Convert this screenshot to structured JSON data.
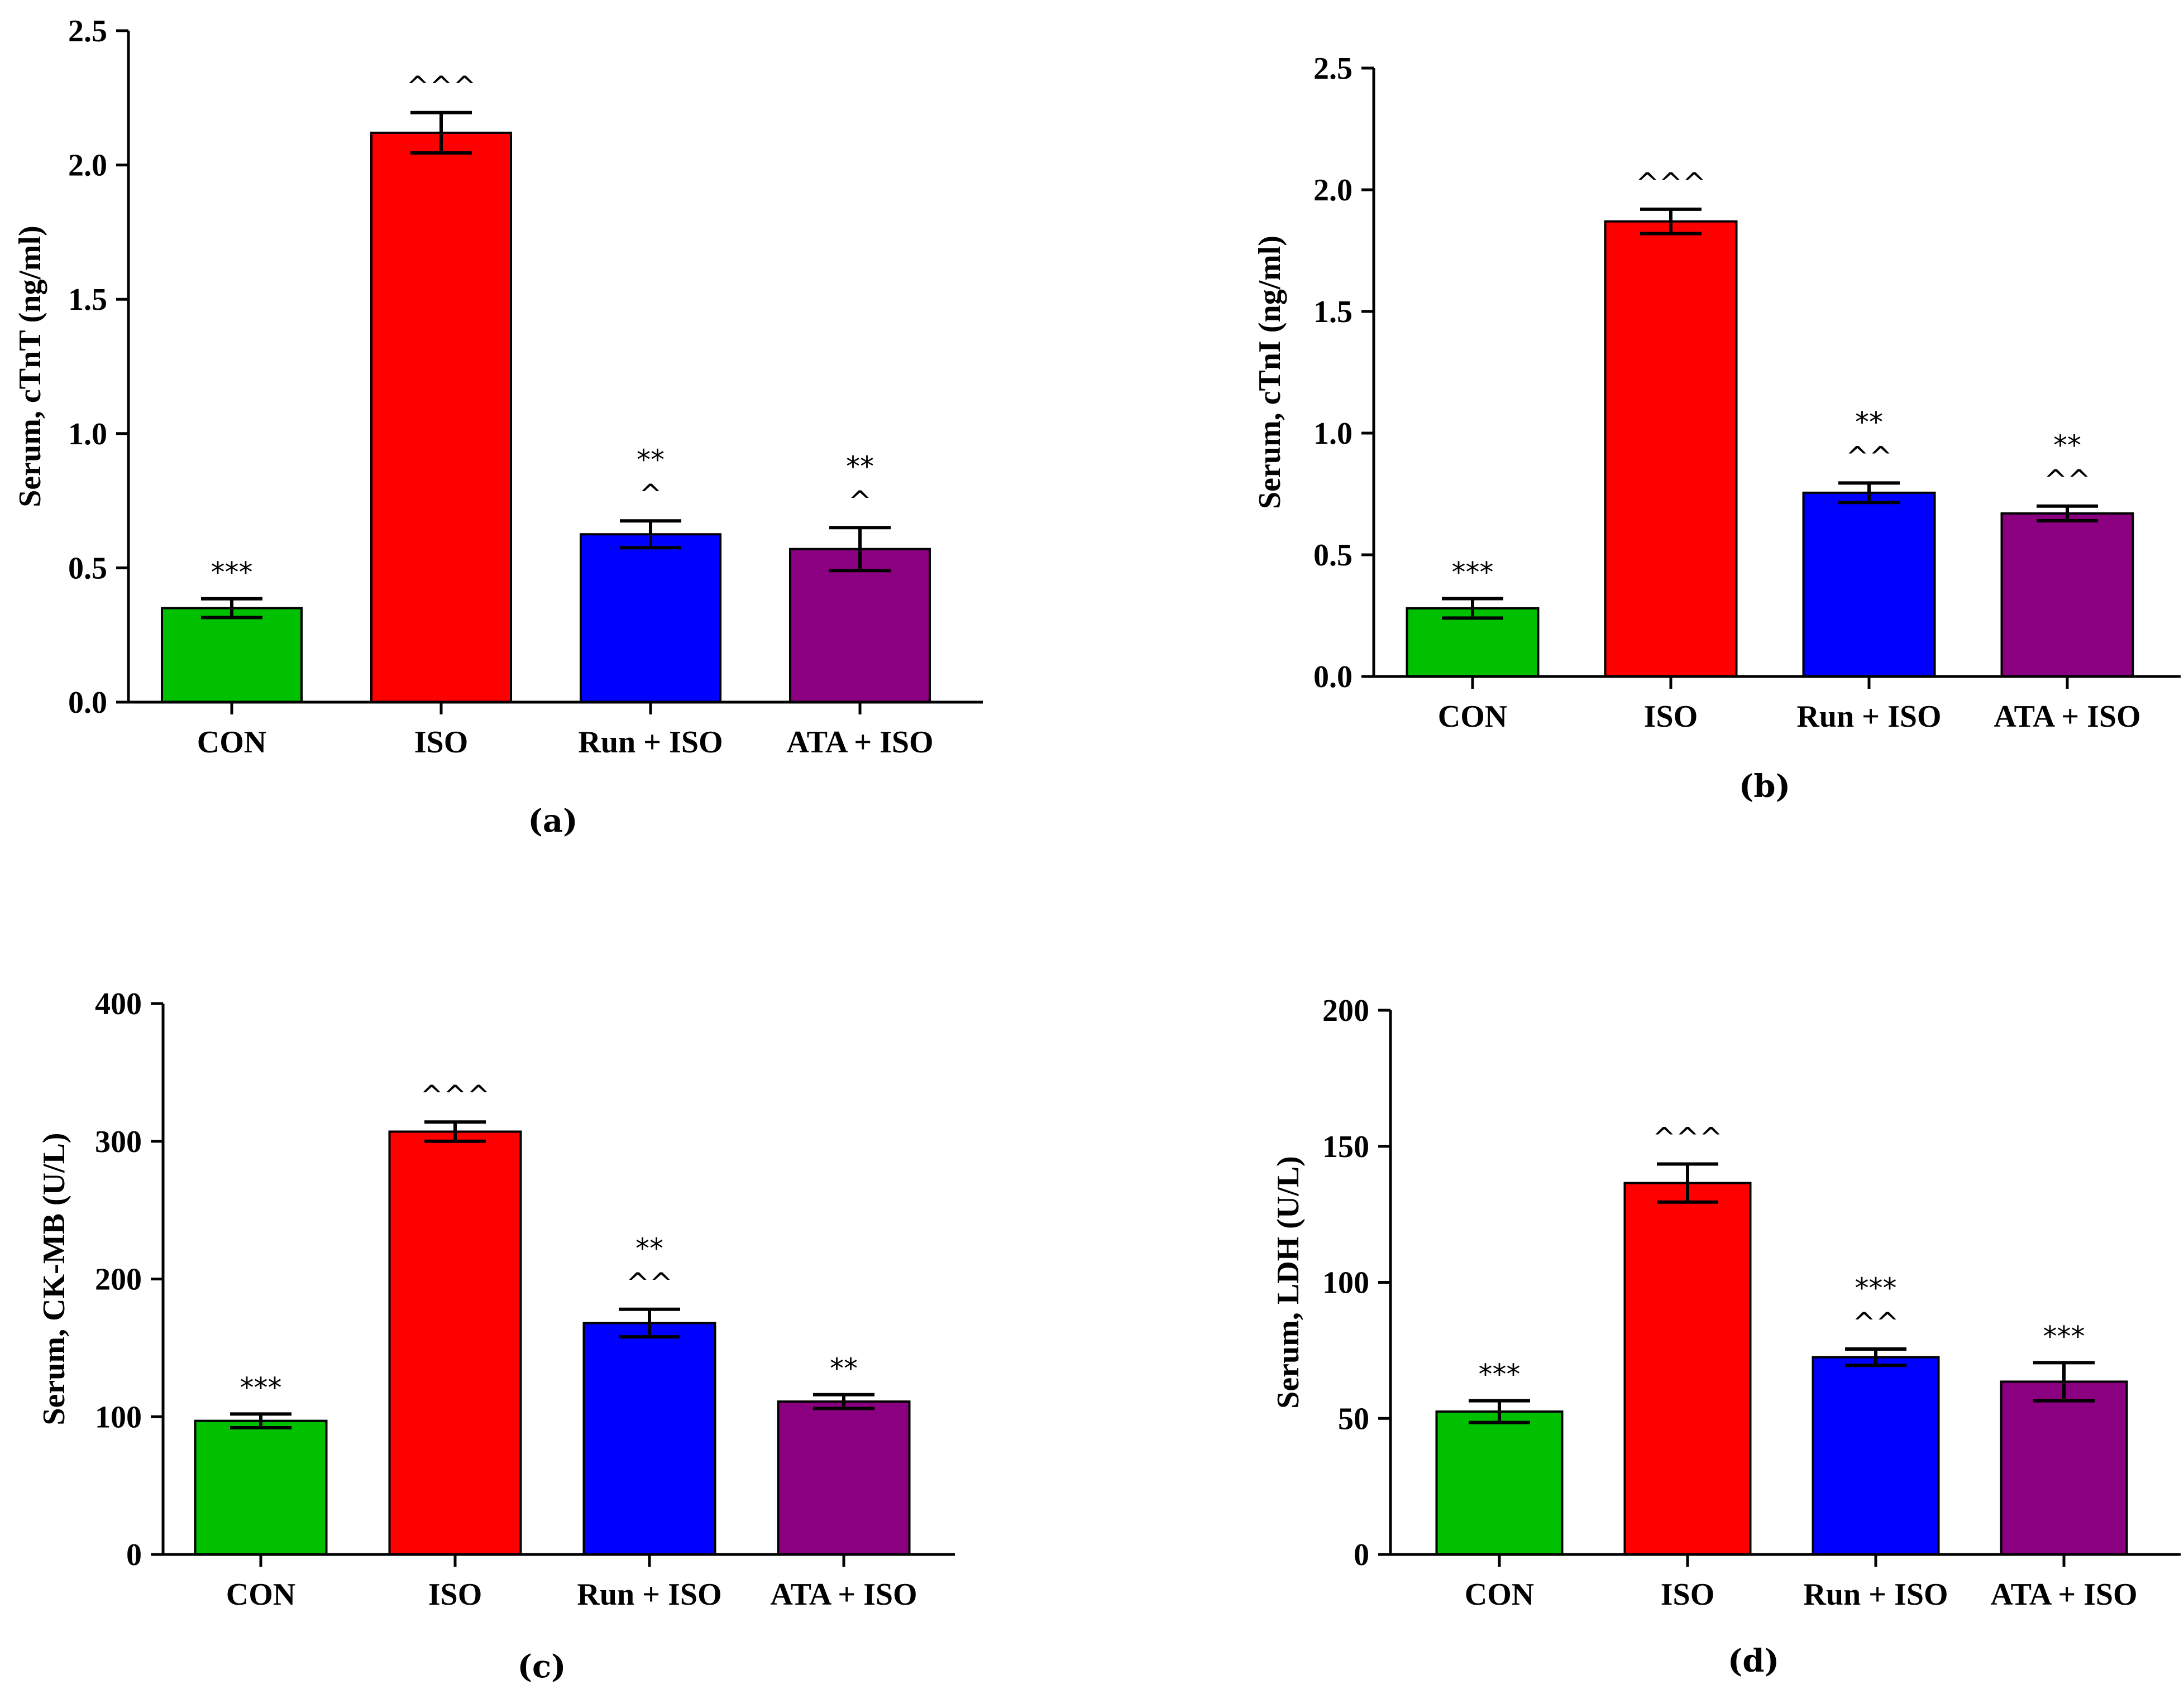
{
  "chart_data": [
    {
      "type": "bar",
      "panel_label": "(a)",
      "ylabel": "Serum, cTnT (ng/ml)",
      "ylim": [
        0,
        2.5
      ],
      "yticks": [
        "0.0",
        "0.5",
        "1.0",
        "1.5",
        "2.0",
        "2.5"
      ],
      "categories": [
        "CON",
        "ISO",
        "Run + ISO",
        "ATA + ISO"
      ],
      "values": [
        0.35,
        2.12,
        0.625,
        0.57
      ],
      "errors": [
        0.035,
        0.075,
        0.05,
        0.08
      ],
      "colors": [
        "#00c000",
        "#ff0000",
        "#0000ff",
        "#8b0080"
      ],
      "significance": [
        "***",
        "^^^",
        "**\n^",
        "**\n^"
      ]
    },
    {
      "type": "bar",
      "panel_label": "(b)",
      "ylabel": "Serum, cTnI (ng/ml)",
      "ylim": [
        0,
        2.5
      ],
      "yticks": [
        "0.0",
        "0.5",
        "1.0",
        "1.5",
        "2.0",
        "2.5"
      ],
      "categories": [
        "CON",
        "ISO",
        "Run + ISO",
        "ATA + ISO"
      ],
      "values": [
        0.28,
        1.87,
        0.755,
        0.67
      ],
      "errors": [
        0.04,
        0.05,
        0.04,
        0.03
      ],
      "colors": [
        "#00c000",
        "#ff0000",
        "#0000ff",
        "#8b0080"
      ],
      "significance": [
        "***",
        "^^^",
        "**\n^^",
        "**\n^^"
      ]
    },
    {
      "type": "bar",
      "panel_label": "(c)",
      "ylabel": "Serum, CK-MB (U/L)",
      "ylim": [
        0,
        400
      ],
      "yticks": [
        "0",
        "100",
        "200",
        "300",
        "400"
      ],
      "categories": [
        "CON",
        "ISO",
        "Run + ISO",
        "ATA + ISO"
      ],
      "values": [
        97,
        307,
        168,
        111
      ],
      "errors": [
        5,
        7,
        10,
        5
      ],
      "colors": [
        "#00c000",
        "#ff0000",
        "#0000ff",
        "#8b0080"
      ],
      "significance": [
        "***",
        "^^^",
        "**\n^^",
        "**"
      ]
    },
    {
      "type": "bar",
      "panel_label": "(d)",
      "ylabel": "Serum, LDH (U/L)",
      "ylim": [
        0,
        200
      ],
      "yticks": [
        "0",
        "50",
        "100",
        "150",
        "200"
      ],
      "categories": [
        "CON",
        "ISO",
        "Run + ISO",
        "ATA + ISO"
      ],
      "values": [
        52.5,
        136.5,
        72.5,
        63.5
      ],
      "errors": [
        4,
        7,
        3,
        7
      ],
      "colors": [
        "#00c000",
        "#ff0000",
        "#0000ff",
        "#8b0080"
      ],
      "significance": [
        "***",
        "^^^",
        "***\n^^",
        "***"
      ]
    }
  ]
}
